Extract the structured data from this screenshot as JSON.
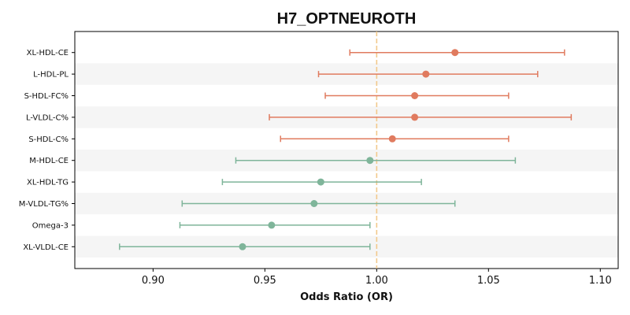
{
  "chart_data": {
    "type": "forest",
    "title": "H7_OPTNEUROTH",
    "xlabel": "Odds Ratio (OR)",
    "ylabel": "",
    "xlim": [
      0.865,
      1.108
    ],
    "xticks": [
      "0.90",
      "0.95",
      "1.00",
      "1.05",
      "1.10"
    ],
    "reference_line": 1.0,
    "grid": false,
    "colors": {
      "positive": "#e07b5f",
      "negative": "#7fb59a",
      "reference": "#f2c98c",
      "band": "#f5f5f5"
    },
    "rows": [
      {
        "label": "XL-HDL-CE",
        "or": 1.035,
        "lower": 0.988,
        "upper": 1.084
      },
      {
        "label": "L-HDL-PL",
        "or": 1.022,
        "lower": 0.974,
        "upper": 1.072
      },
      {
        "label": "S-HDL-FC%",
        "or": 1.017,
        "lower": 0.977,
        "upper": 1.059
      },
      {
        "label": "L-VLDL-C%",
        "or": 1.017,
        "lower": 0.952,
        "upper": 1.087
      },
      {
        "label": "S-HDL-C%",
        "or": 1.007,
        "lower": 0.957,
        "upper": 1.059
      },
      {
        "label": "M-HDL-CE",
        "or": 0.997,
        "lower": 0.937,
        "upper": 1.062
      },
      {
        "label": "XL-HDL-TG",
        "or": 0.975,
        "lower": 0.931,
        "upper": 1.02
      },
      {
        "label": "M-VLDL-TG%",
        "or": 0.972,
        "lower": 0.913,
        "upper": 1.035
      },
      {
        "label": "Omega-3",
        "or": 0.953,
        "lower": 0.912,
        "upper": 0.997
      },
      {
        "label": "XL-VLDL-CE",
        "or": 0.94,
        "lower": 0.885,
        "upper": 0.997
      }
    ]
  }
}
